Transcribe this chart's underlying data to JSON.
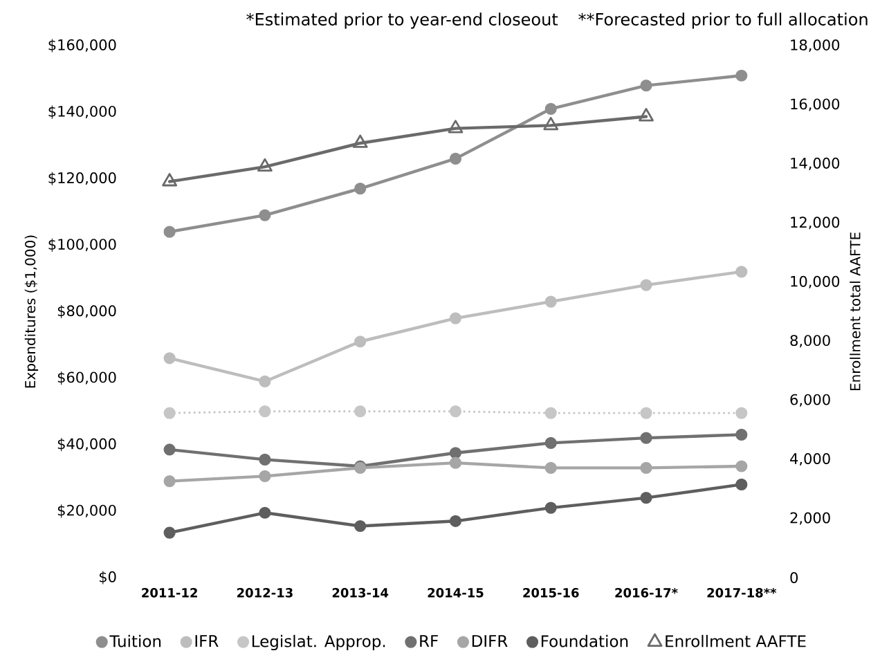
{
  "chart_data": {
    "type": "line",
    "annotations": [
      "*Estimated prior to year-end closeout",
      "**Forecasted prior to full allocation"
    ],
    "categories": [
      "2011-12",
      "2012-13",
      "2013-14",
      "2014-15",
      "2015-16",
      "2016-17*",
      "2017-18**"
    ],
    "ylabel": "Expenditures ($1,000)",
    "y2label": "Enrollment total AAFTE",
    "ylim": [
      0,
      160000
    ],
    "yticks": [
      {
        "value": 0,
        "label": "$0"
      },
      {
        "value": 20000,
        "label": "$20,000"
      },
      {
        "value": 40000,
        "label": "$40,000"
      },
      {
        "value": 60000,
        "label": "$60,000"
      },
      {
        "value": 80000,
        "label": "$80,000"
      },
      {
        "value": 100000,
        "label": "$100,000"
      },
      {
        "value": 120000,
        "label": "$120,000"
      },
      {
        "value": 140000,
        "label": "$140,000"
      },
      {
        "value": 160000,
        "label": "$160,000"
      }
    ],
    "y2lim": [
      0,
      18000
    ],
    "y2ticks": [
      0,
      {
        "value": 2000,
        "label": "2,000"
      },
      {
        "value": 4000,
        "label": "4,000"
      },
      {
        "value": 6000,
        "label": "6,000"
      },
      {
        "value": 8000,
        "label": "8,000"
      },
      {
        "value": 10000,
        "label": "10,000"
      },
      {
        "value": 12000,
        "label": "12,000"
      },
      {
        "value": 14000,
        "label": "14,000"
      },
      {
        "value": 16000,
        "label": "16,000"
      },
      {
        "value": 18000,
        "label": "18,000"
      }
    ],
    "marker": "circle",
    "legend": "bottom",
    "series": [
      {
        "name": "Tuition",
        "color": "#8e8e8e",
        "values": [
          104000,
          109000,
          117000,
          126000,
          141000,
          148000,
          151000
        ]
      },
      {
        "name": "IFR",
        "color": "#bdbdbd",
        "values": [
          66000,
          59000,
          71000,
          78000,
          83000,
          88000,
          92000
        ]
      },
      {
        "name": "Legislat. Approp.",
        "color": "#c6c6c6",
        "line_style": "dotted",
        "values": [
          49500,
          50000,
          50000,
          50000,
          49500,
          49500,
          49500
        ]
      },
      {
        "name": "RF",
        "color": "#707070",
        "values": [
          38500,
          35500,
          33500,
          37500,
          40500,
          42000,
          43000
        ]
      },
      {
        "name": "DIFR",
        "color": "#a6a6a6",
        "values": [
          29000,
          30500,
          33000,
          34500,
          33000,
          33000,
          33500
        ]
      },
      {
        "name": "Foundation",
        "color": "#5e5e5e",
        "values": [
          13500,
          19500,
          15500,
          17000,
          21000,
          24000,
          28000
        ]
      },
      {
        "name": "Enrollment AAFTE",
        "color": "#6a6a6a",
        "axis": "y2",
        "marker": "triangle",
        "values": [
          13400,
          13900,
          14700,
          15200,
          15300,
          15600,
          null
        ]
      }
    ]
  }
}
